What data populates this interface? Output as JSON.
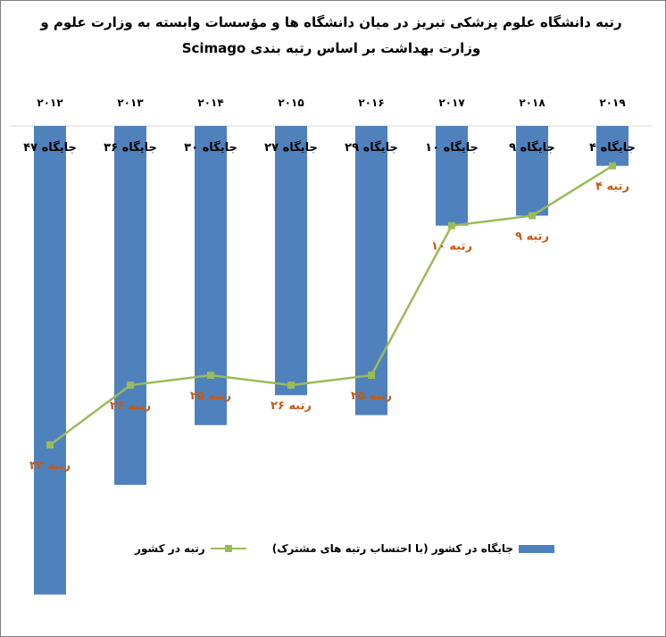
{
  "chart_data": {
    "type": "bar",
    "title": [
      "رتبه دانشگاه علوم پزشکی تبریز در میان دانشگاه ها و مؤسسات وابسته به وزارت علوم و",
      "وزارت بهداشت بر اساس  رتبه بندی Scimago"
    ],
    "categories": [
      "۲۰۱۲",
      "۲۰۱۳",
      "۲۰۱۴",
      "۲۰۱۵",
      "۲۰۱۶",
      "۲۰۱۷",
      "۲۰۱۸",
      "۲۰۱۹"
    ],
    "series": [
      {
        "name": "جایگاه در کشور (با احتساب رتبه های مشترک)",
        "type": "bar",
        "color": "#4f81bd",
        "values": [
          47,
          36,
          30,
          27,
          29,
          10,
          9,
          4
        ],
        "labels": [
          "جایگاه ۴۷",
          "جایگاه ۳۶",
          "جایگاه ۳۰",
          "جایگاه ۲۷",
          "جایگاه ۲۹",
          "جایگاه ۱۰",
          "جایگاه ۹",
          "جایگاه ۴"
        ]
      },
      {
        "name": "رتبه در کشور",
        "type": "line",
        "color": "#9bbb59",
        "label_color": "#c55a11",
        "values": [
          32,
          26,
          25,
          26,
          25,
          10,
          9,
          4
        ],
        "labels": [
          "رتبه ۳۲",
          "رتبه ۲۶",
          "رتبه ۲۵",
          "رتبه ۲۶",
          "رتبه ۲۵",
          "رتبه ۱۰",
          "رتبه ۹",
          "رتبه ۴"
        ]
      }
    ],
    "y_axis": "inverted",
    "grid": false,
    "legend_position": "bottom"
  }
}
